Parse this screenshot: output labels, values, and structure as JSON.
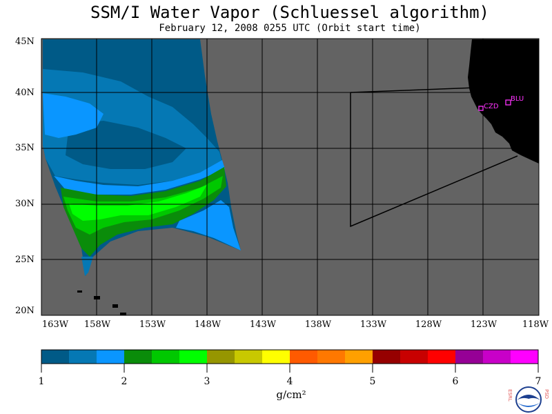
{
  "title": "SSM/I Water Vapor (Schluessel algorithm)",
  "subtitle": "February 12, 2008  0255 UTC  (Orbit start time)",
  "map": {
    "lat_labels": [
      "45N",
      "40N",
      "35N",
      "30N",
      "25N",
      "20N"
    ],
    "lon_labels": [
      "163W",
      "158W",
      "153W",
      "148W",
      "143W",
      "138W",
      "133W",
      "128W",
      "123W",
      "118W"
    ],
    "stations": [
      {
        "name": "CZD"
      },
      {
        "name": "BLU"
      }
    ],
    "colors": {
      "no_data": "#636363",
      "land": "#000000",
      "grid": "#000000",
      "station": "#ff33ff"
    }
  },
  "colorbar": {
    "labels": [
      "1",
      "2",
      "3",
      "4",
      "5",
      "6",
      "7"
    ],
    "colors": [
      "#005a87",
      "#0578b4",
      "#0a96ff",
      "#0a8c0a",
      "#00c800",
      "#00ff00",
      "#969600",
      "#c8c800",
      "#ffff00",
      "#ff5a00",
      "#ff7800",
      "#ffa000",
      "#960000",
      "#c80000",
      "#ff0000",
      "#960096",
      "#c800c8",
      "#ff00ff"
    ],
    "units": "g/cm²"
  },
  "logo": {
    "left_letters": "ESRL",
    "right_letters": "PSD",
    "badge": "NOAA"
  }
}
